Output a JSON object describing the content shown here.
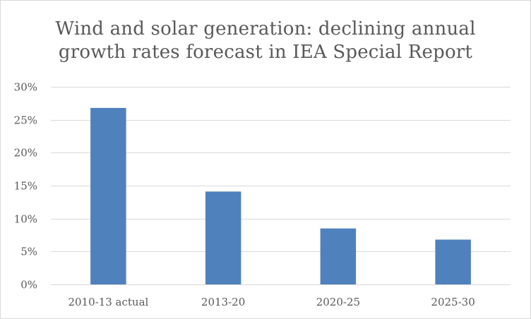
{
  "chart_data": {
    "type": "bar",
    "title_lines": [
      "Wind and solar generation: declining annual",
      "growth rates forecast in IEA Special Report"
    ],
    "categories": [
      "2010-13 actual",
      "2013-20",
      "2020-25",
      "2025-30"
    ],
    "values": [
      26.8,
      14.1,
      8.5,
      6.8
    ],
    "value_unit": "%",
    "ylim": [
      0,
      30
    ],
    "yticks": [
      0,
      5,
      10,
      15,
      20,
      25,
      30
    ],
    "ytick_labels": [
      "0%",
      "5%",
      "10%",
      "15%",
      "20%",
      "25%",
      "30%"
    ],
    "xlabel": "",
    "ylabel": "",
    "grid": true,
    "legend": "none",
    "colors": {
      "bar": "#4f81bd",
      "grid": "#d9d9d9",
      "text": "#595959"
    }
  }
}
